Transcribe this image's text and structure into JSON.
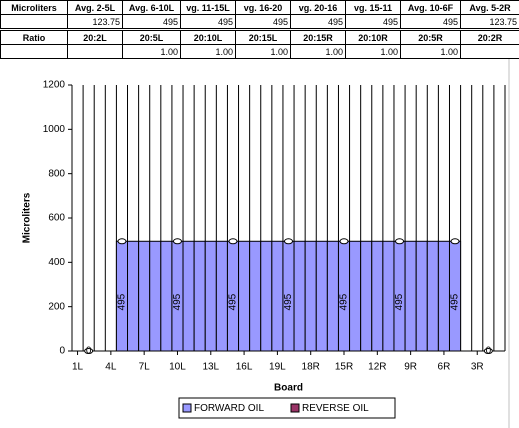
{
  "table": {
    "rows": [
      [
        "Microliters",
        "Avg. 2-5L",
        "Avg. 6-10L",
        "vg. 11-15L",
        "vg. 16-20",
        "vg. 20-16",
        "vg. 15-11",
        "Avg. 10-6F",
        "Avg. 5-2R"
      ],
      [
        null,
        "123.75",
        "495",
        "495",
        "495",
        "495",
        "495",
        "495",
        "123.75"
      ],
      [
        "Ratio",
        "20:2L",
        "20:5L",
        "20:10L",
        "20:15L",
        "20:15R",
        "20:10R",
        "20:5R",
        "20:2R"
      ],
      [
        null,
        null,
        "1.00",
        "1.00",
        "1.00",
        "1.00",
        "1.00",
        "1.00",
        null
      ]
    ]
  },
  "chart_data": {
    "type": "bar",
    "x_label": "Board",
    "y_label": "Microliters",
    "categories": [
      "1L",
      null,
      null,
      "4L",
      null,
      null,
      "7L",
      null,
      null,
      "10L",
      null,
      null,
      "13L",
      null,
      null,
      "16L",
      null,
      null,
      "19L",
      null,
      null,
      "18R",
      null,
      null,
      "15R",
      null,
      null,
      "12R",
      null,
      null,
      "9R",
      null,
      null,
      "6R",
      null,
      null,
      "3R",
      null,
      null
    ],
    "series": [
      {
        "name": "FORWARD OIL",
        "color": "#9999ff",
        "values": [
          null,
          0,
          null,
          null,
          495,
          495,
          495,
          495,
          495,
          495,
          495,
          495,
          495,
          495,
          495,
          495,
          495,
          495,
          495,
          495,
          495,
          495,
          495,
          495,
          495,
          495,
          495,
          495,
          495,
          495,
          495,
          495,
          495,
          495,
          495,
          null,
          null,
          0,
          null
        ],
        "value_labels": [
          null,
          "0",
          null,
          null,
          "495",
          null,
          null,
          null,
          null,
          "495",
          null,
          null,
          null,
          null,
          "495",
          null,
          null,
          null,
          null,
          "495",
          null,
          null,
          null,
          null,
          "495",
          null,
          null,
          null,
          null,
          "495",
          null,
          null,
          null,
          null,
          "495",
          null,
          null,
          "0",
          null
        ]
      },
      {
        "name": "REVERSE OIL",
        "color": "#993366",
        "values": [
          null,
          null,
          null,
          null,
          null,
          null,
          null,
          null,
          null,
          null,
          null,
          null,
          null,
          null,
          null,
          null,
          null,
          null,
          null,
          null,
          null,
          null,
          null,
          null,
          null,
          null,
          null,
          null,
          null,
          null,
          null,
          null,
          null,
          null,
          null,
          null,
          null,
          null,
          null
        ]
      }
    ],
    "ylim": [
      0,
      1200
    ],
    "yticks": [
      0,
      200,
      400,
      600,
      800,
      1000,
      1200
    ],
    "grid": "x",
    "legend": "bottom"
  }
}
